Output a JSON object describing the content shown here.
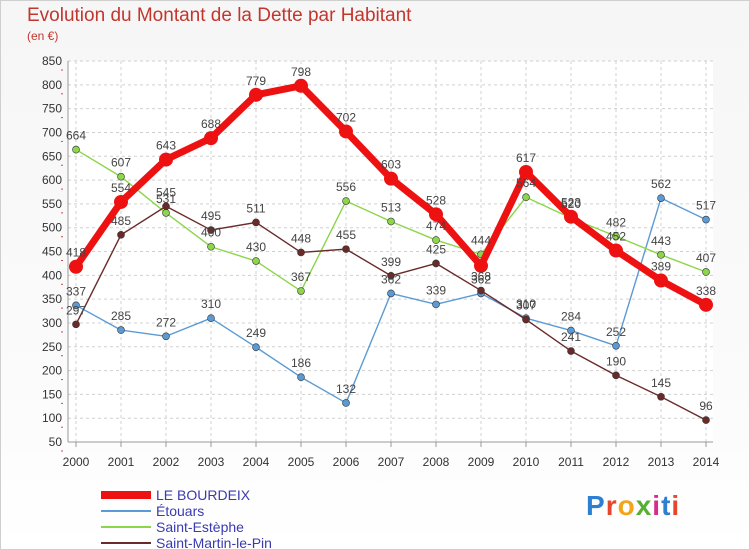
{
  "title": "Evolution du Montant de la Dette par Habitant",
  "unit": "(en €)",
  "logo": {
    "text": "Proxiti",
    "colors": [
      "#2d7fd3",
      "#e8462c",
      "#f2a51a",
      "#56b033",
      "#d92c8a",
      "#2d7fd3",
      "#e8462c"
    ]
  },
  "chart_data": {
    "type": "line",
    "title": "Evolution du Montant de la Dette par Habitant",
    "ylabel": "(en €)",
    "xlabel": "",
    "x": [
      "2000",
      "2001",
      "2002",
      "2003",
      "2004",
      "2005",
      "2006",
      "2007",
      "2008",
      "2009",
      "2010",
      "2011",
      "2012",
      "2013",
      "2014"
    ],
    "ylim": [
      50,
      850
    ],
    "yticks": [
      50,
      100,
      150,
      200,
      250,
      300,
      350,
      400,
      450,
      500,
      550,
      600,
      650,
      700,
      750,
      800,
      850
    ],
    "grid": true,
    "legend": "bottom-left",
    "series": [
      {
        "name": "LE BOURDEIX",
        "color": "#ee1111",
        "emphasis": true,
        "values": [
          418,
          554,
          643,
          688,
          779,
          798,
          702,
          603,
          528,
          420,
          617,
          523,
          452,
          389,
          338
        ],
        "labels": [
          "418",
          "554",
          "643",
          "688",
          "779",
          "798",
          "702",
          "603",
          "528",
          "",
          "617",
          "523",
          "452",
          "389",
          "338"
        ]
      },
      {
        "name": "Étouars",
        "color": "#5b9bd5",
        "emphasis": false,
        "values": [
          337,
          285,
          272,
          310,
          249,
          186,
          132,
          362,
          339,
          362,
          310,
          284,
          252,
          562,
          517
        ],
        "labels": [
          "337",
          "285",
          "272",
          "310",
          "249",
          "186",
          "132",
          "362",
          "339",
          "362",
          "310",
          "284",
          "252",
          "562",
          "517"
        ]
      },
      {
        "name": "Saint-Estèphe",
        "color": "#8cd64a",
        "emphasis": false,
        "values": [
          664,
          607,
          531,
          460,
          430,
          367,
          556,
          513,
          474,
          444,
          564,
          520,
          482,
          443,
          407
        ],
        "labels": [
          "664",
          "607",
          "531",
          "460",
          "430",
          "367",
          "556",
          "513",
          "474",
          "444",
          "564",
          "520",
          "482",
          "443",
          "407"
        ]
      },
      {
        "name": "Saint-Martin-le-Pin",
        "color": "#6b2a2a",
        "emphasis": false,
        "values": [
          297,
          485,
          545,
          495,
          511,
          448,
          455,
          399,
          425,
          368,
          307,
          241,
          190,
          145,
          96
        ],
        "labels": [
          "297",
          "485",
          "545",
          "495",
          "511",
          "448",
          "455",
          "399",
          "425",
          "368",
          "307",
          "241",
          "190",
          "145",
          "96"
        ]
      }
    ]
  }
}
